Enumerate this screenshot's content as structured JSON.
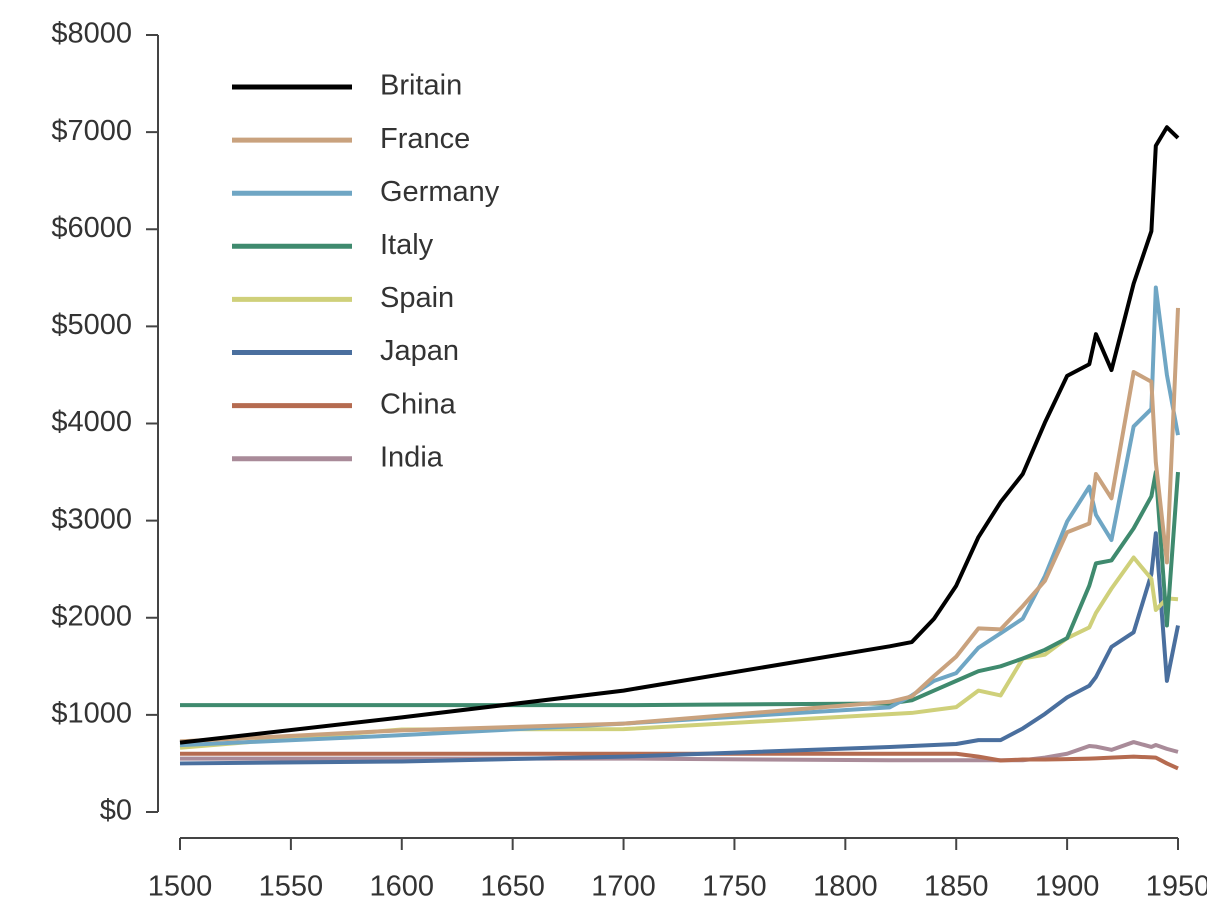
{
  "chart_data": {
    "type": "line",
    "x": [
      1500,
      1600,
      1700,
      1820,
      1830,
      1840,
      1850,
      1860,
      1870,
      1880,
      1890,
      1900,
      1910,
      1913,
      1920,
      1930,
      1938,
      1940,
      1945,
      1950
    ],
    "series": [
      {
        "name": "Britain",
        "color": "#000000",
        "values": [
          714,
          974,
          1250,
          1706,
          1750,
          1990,
          2330,
          2830,
          3190,
          3480,
          4010,
          4490,
          4610,
          4920,
          4550,
          5440,
          5980,
          6860,
          7050,
          6940
        ]
      },
      {
        "name": "France",
        "color": "#c9a27e",
        "values": [
          727,
          841,
          910,
          1135,
          1190,
          1400,
          1600,
          1890,
          1880,
          2120,
          2380,
          2880,
          2970,
          3480,
          3230,
          4530,
          4430,
          3600,
          2570,
          5190
        ]
      },
      {
        "name": "Germany",
        "color": "#6fa6c4",
        "values": [
          688,
          791,
          910,
          1077,
          1200,
          1350,
          1430,
          1690,
          1840,
          1990,
          2430,
          2990,
          3350,
          3060,
          2800,
          3970,
          4150,
          5400,
          4500,
          3880
        ]
      },
      {
        "name": "Italy",
        "color": "#3f8a6e",
        "values": [
          1100,
          1100,
          1100,
          1117,
          1150,
          1250,
          1350,
          1450,
          1500,
          1580,
          1670,
          1790,
          2330,
          2560,
          2590,
          2920,
          3250,
          3500,
          1920,
          3500
        ]
      },
      {
        "name": "Spain",
        "color": "#cfd07a",
        "values": [
          661,
          850,
          853,
          1008,
          1020,
          1050,
          1080,
          1250,
          1200,
          1580,
          1620,
          1790,
          1900,
          2050,
          2300,
          2620,
          2400,
          2080,
          2200,
          2190
        ]
      },
      {
        "name": "Japan",
        "color": "#4a6f9e",
        "values": [
          500,
          520,
          570,
          669,
          680,
          690,
          700,
          740,
          740,
          860,
          1010,
          1180,
          1300,
          1390,
          1700,
          1850,
          2450,
          2870,
          1350,
          1920
        ]
      },
      {
        "name": "China",
        "color": "#b56b50",
        "values": [
          600,
          600,
          600,
          600,
          600,
          600,
          600,
          570,
          530,
          540,
          540,
          545,
          550,
          552,
          560,
          570,
          562,
          560,
          500,
          448
        ]
      },
      {
        "name": "India",
        "color": "#a98b99",
        "values": [
          550,
          550,
          550,
          533,
          533,
          533,
          533,
          533,
          533,
          533,
          560,
          600,
          680,
          673,
          640,
          720,
          670,
          690,
          650,
          619
        ]
      }
    ],
    "xlim": [
      1500,
      1950
    ],
    "xticks": [
      1500,
      1550,
      1600,
      1650,
      1700,
      1750,
      1800,
      1850,
      1900,
      1950
    ],
    "ylim": [
      0,
      8000
    ],
    "yticks": [
      {
        "value": 0,
        "label": "$0"
      },
      {
        "value": 1000,
        "label": "$1000"
      },
      {
        "value": 2000,
        "label": "$2000"
      },
      {
        "value": 3000,
        "label": "$3000"
      },
      {
        "value": 4000,
        "label": "$4000"
      },
      {
        "value": 5000,
        "label": "$5000"
      },
      {
        "value": 6000,
        "label": "$6000"
      },
      {
        "value": 7000,
        "label": "$7000"
      },
      {
        "value": 8000,
        "label": "$8000"
      }
    ],
    "grid": false,
    "legend": "top-left"
  }
}
